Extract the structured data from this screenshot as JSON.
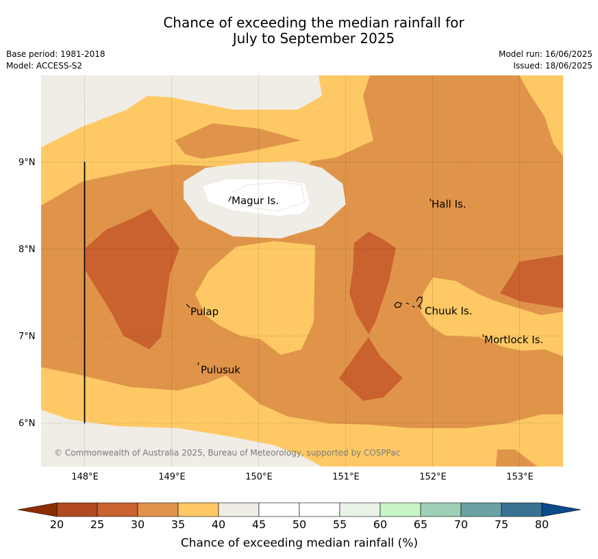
{
  "title_line1": "Chance of exceeding the median rainfall for",
  "title_line2": "July to September 2025",
  "base_period": "Base period: 1981-2018",
  "model": "Model: ACCESS-S2",
  "model_run": "Model run: 16/06/2025",
  "issued": "Issued: 18/06/2025",
  "lon_ticks": [
    "148°E",
    "149°E",
    "150°E",
    "151°E",
    "152°E",
    "153°E"
  ],
  "lat_ticks": [
    "9°N",
    "8°N",
    "7°N",
    "6°N"
  ],
  "places": {
    "magur": "Magur Is.",
    "hall": "Hall Is.",
    "pulap": "Pulap",
    "chuuk": "Chuuk Is.",
    "mortlock": "Mortlock Is.",
    "pulusuk": "Pulusuk"
  },
  "copyright": "© Commonwealth of Australia 2025, Bureau of Meteorology, supported by COSPPac",
  "colorbar": {
    "title": "Chance of exceeding median rainfall (%)",
    "ticks": [
      "20",
      "25",
      "30",
      "35",
      "40",
      "45",
      "50",
      "55",
      "60",
      "65",
      "70",
      "75",
      "80"
    ],
    "colors": [
      "#8c2d04",
      "#b24a22",
      "#c9622f",
      "#e0944a",
      "#fec965",
      "#f0ece6",
      "#ffffff",
      "#ffffff",
      "#eaf3e8",
      "#c8f5c8",
      "#9ccfb5",
      "#6aa2a4",
      "#3a7392",
      "#0a4a8a"
    ]
  },
  "map_colors": {
    "pct_20_25": "#b24a22",
    "pct_25_30": "#c9622f",
    "pct_30_35": "#e0944a",
    "pct_35_40": "#fec965",
    "pct_40_45": "#f0ece6",
    "pct_45_50": "#ffffff"
  }
}
